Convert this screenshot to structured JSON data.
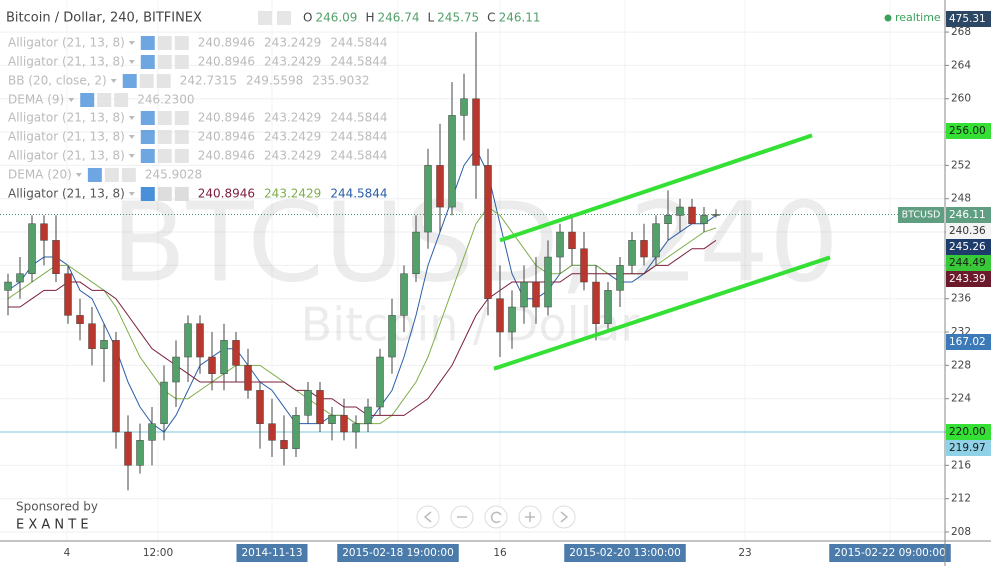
{
  "header": {
    "title": "Bitcoin / Dollar, 240, BITFINEX",
    "ohlc": [
      {
        "label": "O",
        "value": 246.09
      },
      {
        "label": "H",
        "value": 246.74
      },
      {
        "label": "L",
        "value": 245.75
      },
      {
        "label": "C",
        "value": 246.11
      }
    ],
    "status": "realtime"
  },
  "indicators": [
    {
      "name": "Alligator (21, 13, 8)",
      "values": [
        "240.8946",
        "243.2429",
        "244.5844"
      ]
    },
    {
      "name": "Alligator (21, 13, 8)",
      "values": [
        "240.8946",
        "243.2429",
        "244.5844"
      ]
    },
    {
      "name": "BB (20, close, 2)",
      "values": [
        "242.7315",
        "249.5598",
        "235.9032"
      ]
    },
    {
      "name": "DEMA (9)",
      "values": [
        "246.2300"
      ]
    },
    {
      "name": "Alligator (21, 13, 8)",
      "values": [
        "240.8946",
        "243.2429",
        "244.5844"
      ]
    },
    {
      "name": "Alligator (21, 13, 8)",
      "values": [
        "240.8946",
        "243.2429",
        "244.5844"
      ]
    },
    {
      "name": "Alligator (21, 13, 8)",
      "values": [
        "240.8946",
        "243.2429",
        "244.5844"
      ]
    },
    {
      "name": "DEMA (20)",
      "values": [
        "245.9028"
      ]
    },
    {
      "name": "Alligator (21, 13, 8)",
      "values": [
        "240.8946",
        "243.2429",
        "244.5844"
      ]
    }
  ],
  "watermark": {
    "symbol": "BTCUSD, 240",
    "name": "Bitcoin / Dollar"
  },
  "sponsor": {
    "label": "Sponsored by",
    "brand": "E X A N T E"
  },
  "price_badges": [
    {
      "label": "475.31",
      "color": "#2b4764",
      "text_color": "#ffffff"
    },
    {
      "label": "256.00",
      "color": "#33e033",
      "text_color": "#1a1a1a"
    },
    {
      "label": "246.11",
      "color": "#5f9e80",
      "text_color": "#ffffff",
      "tag": "BTCUSD"
    },
    {
      "label": "240.36",
      "color": "#f4f4f4",
      "text_color": "#333333"
    },
    {
      "label": "245.26",
      "color": "#1e3c6b",
      "text_color": "#ffffff"
    },
    {
      "label": "244.49",
      "color": "#38c938",
      "text_color": "#1a1a1a"
    },
    {
      "label": "243.39",
      "color": "#6b1a2c",
      "text_color": "#ffffff"
    },
    {
      "label": "167.02",
      "color": "#3b79b8",
      "text_color": "#ffffff"
    },
    {
      "label": "220.00",
      "color": "#33e033",
      "text_color": "#1a1a1a"
    },
    {
      "label": "219.97",
      "color": "#8fd2e8",
      "text_color": "#1a1a1a"
    }
  ],
  "chart_data": {
    "type": "candlestick",
    "open": [
      237,
      238,
      239,
      245,
      243,
      239,
      234,
      233,
      230,
      231,
      220,
      216,
      219,
      221,
      226,
      229,
      233,
      229,
      227,
      231,
      228,
      225,
      221,
      219,
      218,
      222,
      225,
      221,
      222,
      220,
      221,
      223,
      229,
      234,
      239,
      244,
      252,
      247,
      258,
      260,
      252,
      236,
      232,
      235,
      238,
      235,
      241,
      244,
      242,
      238,
      233,
      237,
      240,
      243,
      241,
      245,
      246,
      247,
      245,
      246.09
    ],
    "high": [
      239,
      241,
      246,
      246,
      246,
      240,
      236,
      235,
      233,
      232,
      222,
      221,
      223,
      228,
      231,
      234,
      234,
      232,
      233,
      232,
      230,
      226,
      224,
      222,
      223,
      226,
      226,
      223,
      224,
      222,
      224,
      230,
      236,
      240,
      246,
      254,
      257,
      262,
      263,
      268,
      254,
      240,
      237,
      240,
      241,
      243,
      245,
      246,
      244,
      240,
      238,
      241,
      244,
      245,
      246,
      249,
      248,
      248,
      247,
      246.74
    ],
    "low": [
      234,
      236,
      238,
      240,
      238,
      233,
      231,
      228,
      226,
      218,
      213,
      215,
      216,
      219,
      223,
      226,
      227,
      225,
      225,
      226,
      224,
      218,
      217,
      216,
      217,
      221,
      220,
      219,
      219,
      218,
      220,
      222,
      227,
      232,
      238,
      242,
      244,
      246,
      255,
      248,
      234,
      229,
      230,
      233,
      233,
      234,
      239,
      240,
      237,
      231,
      232,
      235,
      239,
      240,
      240,
      243,
      244,
      245,
      244,
      245.75
    ],
    "close": [
      238,
      239,
      245,
      243,
      239,
      234,
      233,
      230,
      231,
      220,
      216,
      219,
      221,
      226,
      229,
      233,
      229,
      227,
      231,
      228,
      225,
      221,
      219,
      218,
      222,
      225,
      221,
      222,
      220,
      221,
      223,
      229,
      234,
      239,
      244,
      252,
      247,
      258,
      260,
      252,
      236,
      232,
      235,
      238,
      235,
      241,
      244,
      242,
      238,
      233,
      237,
      240,
      243,
      241,
      245,
      246,
      247,
      245,
      246,
      246.11
    ],
    "up_color": "#53a06a",
    "down_color": "#b9372d",
    "lines": [
      {
        "color": "#2a5fa8",
        "values": [
          237,
          238,
          240,
          241,
          241,
          240,
          237,
          236,
          233,
          230,
          226,
          223,
          221,
          220,
          222,
          225,
          228,
          229,
          230,
          230,
          228,
          226,
          225,
          223,
          221,
          221,
          221,
          222,
          222,
          221,
          221,
          223,
          225,
          229,
          234,
          240,
          244,
          248,
          252,
          254,
          251,
          245,
          239,
          236,
          236,
          237,
          239,
          240,
          240,
          240,
          239,
          238,
          238,
          239,
          241,
          243,
          244,
          245,
          245,
          246
        ]
      },
      {
        "color": "#7fae4a",
        "values": [
          236,
          237,
          238,
          239,
          240,
          240,
          239,
          238,
          237,
          235,
          232,
          229,
          227,
          225,
          224,
          224,
          225,
          226,
          227,
          228,
          228,
          228,
          227,
          226,
          225,
          224,
          223,
          222,
          222,
          221,
          221,
          221,
          222,
          224,
          226,
          229,
          233,
          237,
          241,
          245,
          247,
          246,
          244,
          242,
          240,
          239,
          239,
          240,
          240,
          240,
          239,
          239,
          239,
          239,
          240,
          241,
          242,
          243,
          244,
          244.5
        ]
      },
      {
        "color": "#7d1f3c",
        "values": [
          235,
          235,
          236,
          237,
          237,
          238,
          238,
          237,
          237,
          236,
          234,
          232,
          230,
          229,
          228,
          227,
          226,
          226,
          226,
          226,
          226,
          226,
          226,
          226,
          225,
          225,
          224,
          224,
          223,
          223,
          222,
          222,
          222,
          222,
          223,
          224,
          226,
          228,
          231,
          234,
          236,
          237,
          238,
          238,
          238,
          238,
          238,
          239,
          239,
          239,
          239,
          239,
          239,
          239,
          240,
          240,
          241,
          242,
          242,
          243
        ]
      }
    ],
    "hlines": [
      {
        "value": 246.11,
        "color": "#3d8f6e",
        "dashed": true
      },
      {
        "value": 220,
        "color": "#7cc6dc",
        "dashed": false
      }
    ],
    "trendlines": [
      {
        "color": "#33e033",
        "x": [
          41,
          67
        ],
        "y": [
          243,
          255.6
        ]
      },
      {
        "color": "#33e033",
        "x": [
          40.5,
          68.5
        ],
        "y": [
          227.6,
          240.95
        ]
      }
    ],
    "x_labels": [
      "4",
      "12:00",
      "2014-11-13",
      "2015-02-18 19:00:00",
      "16",
      "2015-02-20 13:00:00",
      "23",
      "2015-02-22 09:00:00"
    ],
    "ylim": [
      206.92,
      271.85
    ],
    "yticks": [
      208,
      212,
      216,
      220,
      224,
      228,
      232,
      236,
      240,
      244,
      248,
      252,
      256,
      260,
      264,
      268
    ],
    "grid": true
  }
}
